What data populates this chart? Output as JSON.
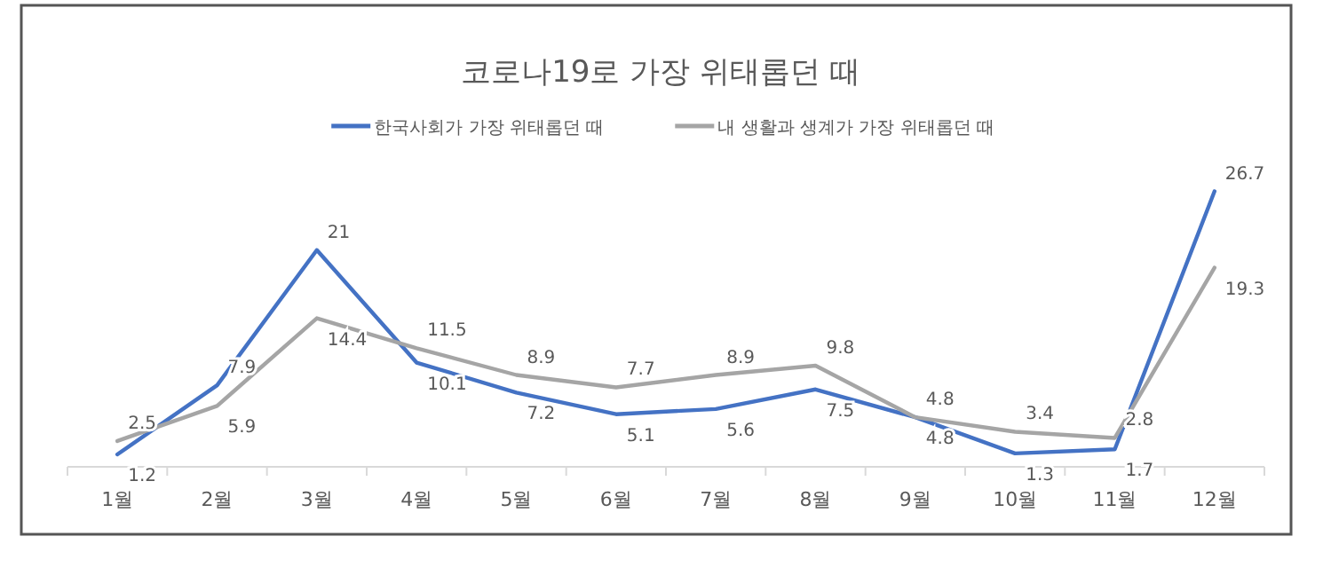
{
  "chart_data": {
    "type": "line",
    "title": "코로나19로 가장 위태롭던 때",
    "categories": [
      "1월",
      "2월",
      "3월",
      "4월",
      "5월",
      "6월",
      "7월",
      "8월",
      "9월",
      "10월",
      "11월",
      "12월"
    ],
    "series": [
      {
        "name": "한국사회가 가장 위태롭던 때",
        "color": "#4472c4",
        "values": [
          1.2,
          7.9,
          21,
          10.1,
          7.2,
          5.1,
          5.6,
          7.5,
          4.8,
          1.3,
          1.7,
          26.7
        ]
      },
      {
        "name": "내 생활과 생계가 가장 위태롭던 때",
        "color": "#a5a5a5",
        "values": [
          2.5,
          5.9,
          14.4,
          11.5,
          8.9,
          7.7,
          8.9,
          9.8,
          4.8,
          3.4,
          2.8,
          19.3
        ]
      }
    ],
    "data_labels": true,
    "legend": "top",
    "marker": "none",
    "line_style": "solid",
    "tick_labels": "x"
  }
}
